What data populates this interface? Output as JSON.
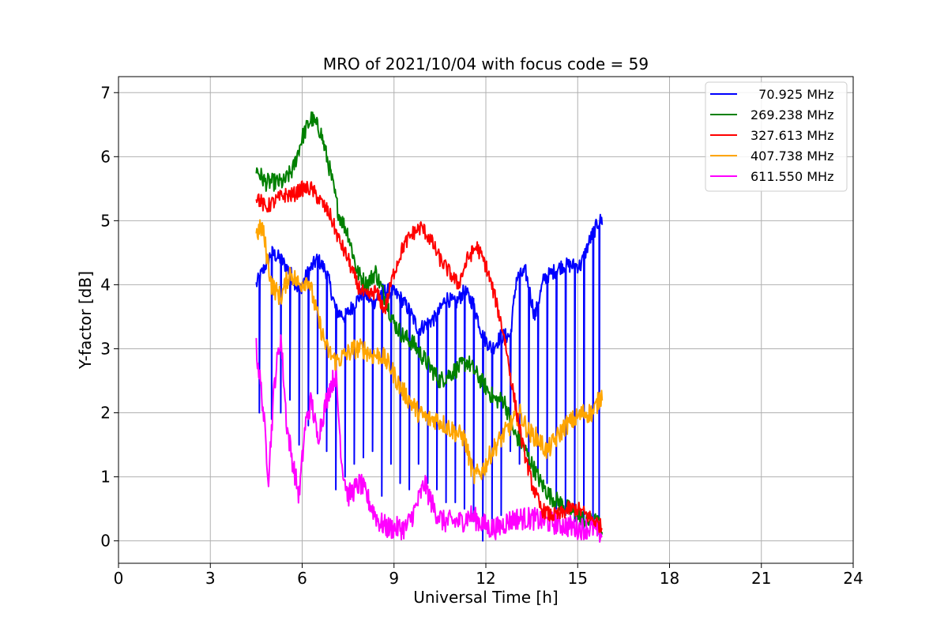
{
  "chart_data": {
    "type": "line",
    "title": "MRO of 2021/10/04 with focus code = 59",
    "xlabel": "Universal Time [h]",
    "ylabel": "Y-factor [dB]",
    "xlim": [
      0,
      24
    ],
    "ylim": [
      -0.35,
      7.25
    ],
    "xticks": [
      0,
      3,
      6,
      9,
      12,
      15,
      18,
      21,
      24
    ],
    "xtick_labels": [
      "0",
      "3",
      "6",
      "9",
      "12",
      "15",
      "18",
      "21",
      "24"
    ],
    "yticks": [
      0,
      1,
      2,
      3,
      4,
      5,
      6,
      7
    ],
    "ytick_labels": [
      "0",
      "1",
      "2",
      "3",
      "4",
      "5",
      "6",
      "7"
    ],
    "grid": true,
    "legend_position": "top-right",
    "series": [
      {
        "name": "  70.925 MHz",
        "color": "#0000ff",
        "x": [
          4.5,
          4.8,
          5.0,
          5.3,
          5.6,
          5.9,
          6.2,
          6.5,
          6.8,
          7.1,
          7.4,
          7.7,
          8.0,
          8.3,
          8.6,
          8.9,
          9.2,
          9.5,
          9.8,
          10.1,
          10.4,
          10.7,
          11.0,
          11.3,
          11.6,
          11.9,
          12.2,
          12.5,
          12.8,
          13.0,
          13.3,
          13.6,
          13.9,
          14.2,
          14.5,
          14.8,
          15.1,
          15.4,
          15.7,
          15.8
        ],
        "y": [
          4.0,
          4.3,
          4.5,
          4.4,
          4.2,
          3.9,
          4.2,
          4.4,
          4.2,
          3.6,
          3.5,
          3.7,
          3.9,
          3.7,
          3.9,
          3.9,
          3.8,
          3.6,
          3.3,
          3.4,
          3.5,
          3.8,
          3.7,
          3.9,
          3.7,
          3.2,
          3.0,
          3.2,
          3.2,
          4.1,
          4.2,
          3.5,
          4.1,
          4.2,
          4.3,
          4.3,
          4.3,
          4.7,
          5.0,
          5.0
        ],
        "dips": [
          [
            4.6,
            2.0
          ],
          [
            5.0,
            1.9
          ],
          [
            5.3,
            2.0
          ],
          [
            5.6,
            2.2
          ],
          [
            5.9,
            1.5
          ],
          [
            6.2,
            1.8
          ],
          [
            6.5,
            2.3
          ],
          [
            6.8,
            1.4
          ],
          [
            7.1,
            0.8
          ],
          [
            7.4,
            1.0
          ],
          [
            7.7,
            1.2
          ],
          [
            8.0,
            1.3
          ],
          [
            8.3,
            1.4
          ],
          [
            8.6,
            0.7
          ],
          [
            8.9,
            1.2
          ],
          [
            9.2,
            0.9
          ],
          [
            9.5,
            0.8
          ],
          [
            9.8,
            1.2
          ],
          [
            10.1,
            0.9
          ],
          [
            10.4,
            0.8
          ],
          [
            10.7,
            0.6
          ],
          [
            11.0,
            0.6
          ],
          [
            11.3,
            0.5
          ],
          [
            11.6,
            0.3
          ],
          [
            11.9,
            0.0
          ],
          [
            12.2,
            0.2
          ],
          [
            12.5,
            0.4
          ],
          [
            12.8,
            1.4
          ],
          [
            13.1,
            1.2
          ],
          [
            13.4,
            1.1
          ],
          [
            13.7,
            1.1
          ],
          [
            14.0,
            0.9
          ],
          [
            14.3,
            0.5
          ],
          [
            14.6,
            0.4
          ],
          [
            14.9,
            0.3
          ],
          [
            15.2,
            0.2
          ],
          [
            15.5,
            0.1
          ],
          [
            15.7,
            0.1
          ]
        ]
      },
      {
        "name": "269.238 MHz",
        "color": "#008000",
        "x": [
          4.5,
          4.8,
          5.1,
          5.4,
          5.7,
          6.0,
          6.3,
          6.6,
          6.9,
          7.2,
          7.5,
          7.8,
          8.1,
          8.4,
          8.7,
          9.0,
          9.3,
          9.6,
          9.9,
          10.2,
          10.5,
          10.8,
          11.1,
          11.4,
          11.7,
          12.0,
          12.3,
          12.6,
          12.9,
          13.2,
          13.5,
          13.8,
          14.1,
          14.4,
          14.7,
          15.0,
          15.3,
          15.6,
          15.8
        ],
        "y": [
          5.8,
          5.6,
          5.6,
          5.6,
          5.8,
          6.3,
          6.6,
          6.4,
          5.8,
          5.1,
          4.8,
          4.2,
          4.0,
          4.2,
          3.8,
          3.4,
          3.2,
          3.1,
          2.9,
          2.7,
          2.5,
          2.6,
          2.7,
          2.8,
          2.6,
          2.4,
          2.2,
          2.2,
          1.7,
          1.5,
          1.2,
          0.9,
          0.7,
          0.6,
          0.5,
          0.4,
          0.3,
          0.3,
          0.2
        ]
      },
      {
        "name": "327.613 MHz",
        "color": "#ff0000",
        "x": [
          4.5,
          4.8,
          5.1,
          5.4,
          5.7,
          6.0,
          6.3,
          6.6,
          6.9,
          7.2,
          7.5,
          7.8,
          8.1,
          8.4,
          8.7,
          9.0,
          9.3,
          9.6,
          9.9,
          10.2,
          10.5,
          10.8,
          11.1,
          11.4,
          11.7,
          12.0,
          12.3,
          12.6,
          12.9,
          13.2,
          13.5,
          13.8,
          14.1,
          14.4,
          14.7,
          15.0,
          15.3,
          15.6,
          15.8
        ],
        "y": [
          5.4,
          5.2,
          5.3,
          5.4,
          5.4,
          5.5,
          5.5,
          5.3,
          5.1,
          4.7,
          4.4,
          4.0,
          3.8,
          3.9,
          3.6,
          4.2,
          4.6,
          4.8,
          4.9,
          4.7,
          4.4,
          4.2,
          4.0,
          4.4,
          4.6,
          4.3,
          3.8,
          3.2,
          2.3,
          1.5,
          0.9,
          0.5,
          0.4,
          0.4,
          0.5,
          0.5,
          0.4,
          0.3,
          0.2
        ]
      },
      {
        "name": "407.738 MHz",
        "color": "#ffa500",
        "x": [
          4.5,
          4.7,
          5.0,
          5.3,
          5.6,
          5.9,
          6.2,
          6.5,
          6.8,
          7.1,
          7.4,
          7.7,
          8.0,
          8.3,
          8.6,
          8.9,
          9.2,
          9.5,
          9.8,
          10.1,
          10.4,
          10.7,
          11.0,
          11.3,
          11.6,
          11.9,
          12.2,
          12.5,
          12.8,
          13.1,
          13.4,
          13.7,
          14.0,
          14.3,
          14.6,
          14.9,
          15.2,
          15.5,
          15.8
        ],
        "y": [
          4.8,
          4.9,
          4.0,
          3.8,
          4.2,
          4.0,
          4.1,
          3.5,
          3.0,
          2.8,
          2.9,
          3.0,
          3.0,
          2.9,
          2.9,
          2.7,
          2.4,
          2.2,
          2.0,
          1.9,
          1.9,
          1.8,
          1.7,
          1.6,
          1.0,
          1.1,
          1.4,
          1.6,
          1.8,
          2.0,
          1.7,
          1.6,
          1.4,
          1.6,
          1.8,
          1.9,
          2.0,
          2.0,
          2.3
        ]
      },
      {
        "name": "611.550 MHz",
        "color": "#ff00ff",
        "x": [
          4.5,
          4.7,
          4.9,
          5.1,
          5.3,
          5.5,
          5.7,
          5.9,
          6.1,
          6.3,
          6.5,
          6.7,
          6.9,
          7.1,
          7.3,
          7.5,
          7.7,
          7.9,
          8.1,
          8.3,
          8.5,
          8.8,
          9.1,
          9.4,
          9.7,
          10.0,
          10.3,
          10.6,
          10.9,
          11.2,
          11.5,
          11.8,
          12.1,
          12.4,
          12.7,
          13.0,
          13.5,
          14.0,
          14.5,
          15.0,
          15.5,
          15.8
        ],
        "y": [
          3.0,
          2.2,
          1.0,
          2.5,
          3.2,
          1.8,
          1.2,
          0.7,
          1.8,
          2.2,
          1.6,
          2.0,
          2.4,
          2.6,
          1.2,
          0.7,
          0.8,
          0.9,
          0.7,
          0.5,
          0.3,
          0.2,
          0.2,
          0.2,
          0.5,
          0.9,
          0.5,
          0.3,
          0.3,
          0.3,
          0.4,
          0.3,
          0.2,
          0.2,
          0.3,
          0.35,
          0.35,
          0.3,
          0.25,
          0.2,
          0.2,
          0.1
        ]
      }
    ]
  }
}
